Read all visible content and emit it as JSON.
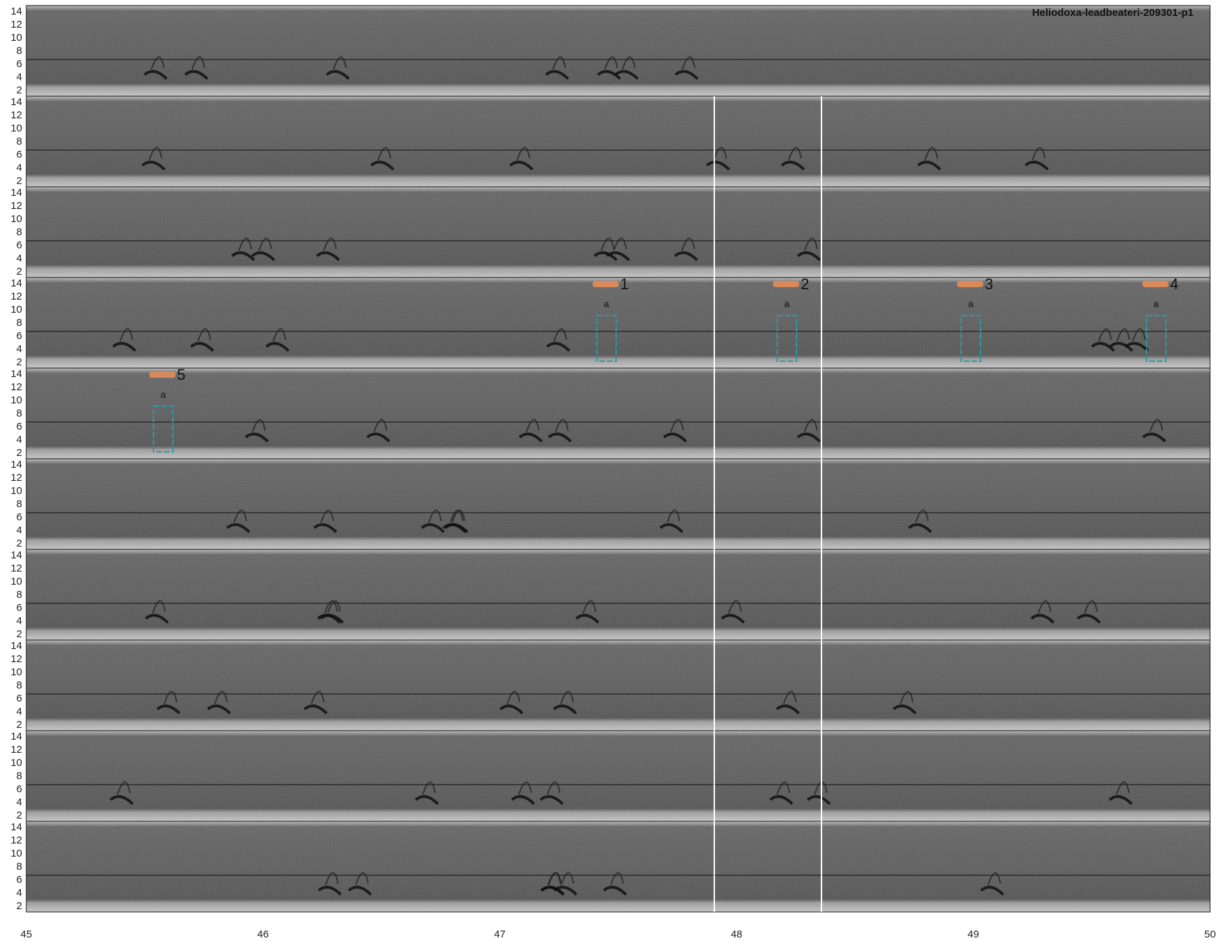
{
  "title": "Heliodoxa-leadbeateri-209301-p1",
  "x_ticks": [
    "45",
    "46",
    "47",
    "48",
    "49",
    "50"
  ],
  "y_ticks": [
    "14",
    "12",
    "10",
    "8",
    "6",
    "4",
    "2"
  ],
  "row_count": 10,
  "colors": {
    "marker_orange": "#d9895a",
    "box_teal": "#2a9aa8",
    "background": "#ffffff"
  },
  "annotations": [
    {
      "id": "1",
      "label": "a",
      "row": 4
    },
    {
      "id": "2",
      "label": "a",
      "row": 4
    },
    {
      "id": "3",
      "label": "a",
      "row": 4
    },
    {
      "id": "4",
      "label": "a",
      "row": 4
    },
    {
      "id": "5",
      "label": "a",
      "row": 5
    }
  ]
}
